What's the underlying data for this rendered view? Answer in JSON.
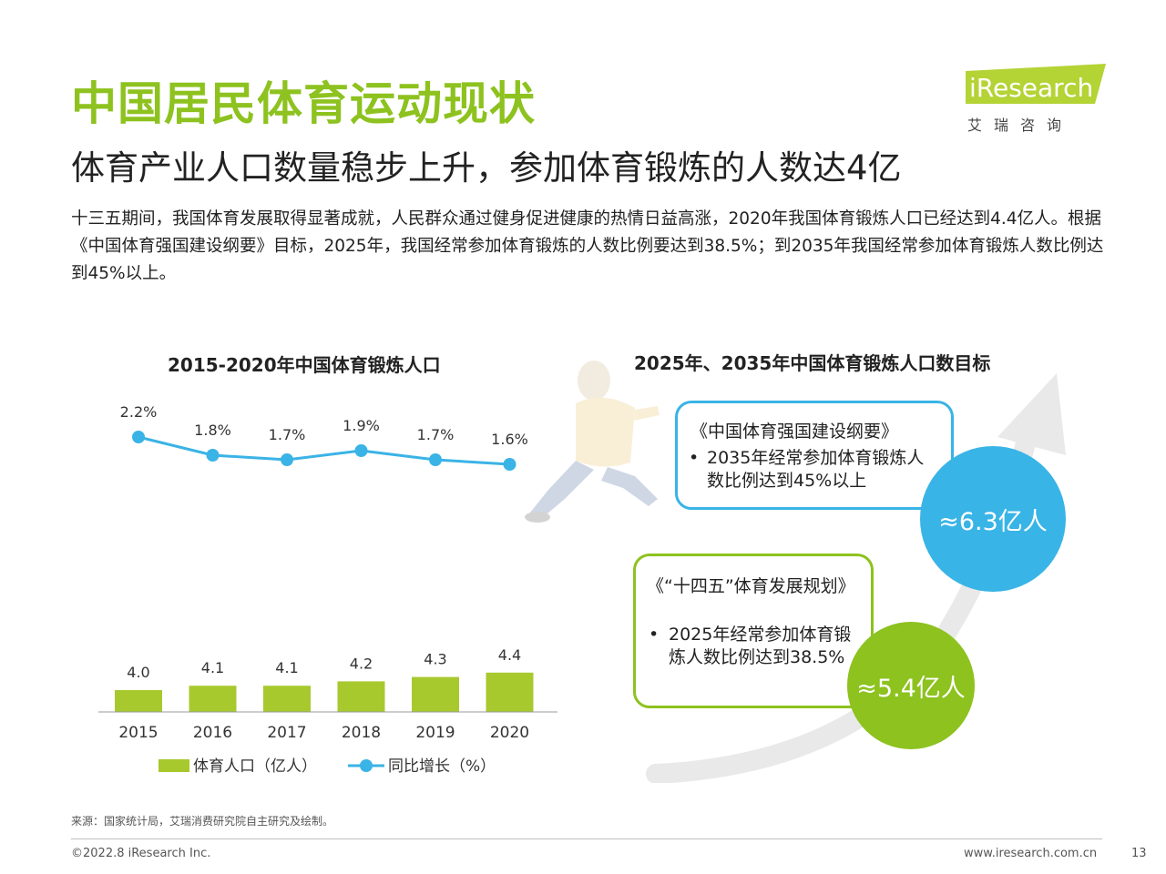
{
  "header": {
    "title": "中国居民体育运动现状",
    "subtitle": "体育产业人口数量稳步上升，参加体育锻炼的人数达4亿",
    "logo_text": "iResearch",
    "logo_cn": "艾瑞咨询"
  },
  "intro": "十三五期间，我国体育发展取得显著成就，人民群众通过健身促进健康的热情日益高涨，2020年我国体育锻炼人口已经达到4.4亿人。根据《中国体育强国建设纲要》目标，2025年，我国经常参加体育锻炼的人数比例要达到38.5%；到2035年我国经常参加体育锻炼人数比例达到45%以上。",
  "chart_data": {
    "type": "bar",
    "title": "2015-2020年中国体育锻炼人口",
    "categories": [
      "2015",
      "2016",
      "2017",
      "2018",
      "2019",
      "2020"
    ],
    "series": [
      {
        "name": "体育人口（亿人）",
        "type": "bar",
        "values": [
          4.0,
          4.1,
          4.1,
          4.2,
          4.3,
          4.4
        ],
        "labels": [
          "4.0",
          "4.1",
          "4.1",
          "4.2",
          "4.3",
          "4.4"
        ],
        "color": "#a8c92e"
      },
      {
        "name": "同比增长（%）",
        "type": "line",
        "values": [
          2.2,
          1.8,
          1.7,
          1.9,
          1.7,
          1.6
        ],
        "labels": [
          "2.2%",
          "1.8%",
          "1.7%",
          "1.9%",
          "1.7%",
          "1.6%"
        ],
        "color": "#3ab3e6"
      }
    ],
    "legend": "bottom"
  },
  "targets": {
    "title": "2025年、2035年中国体育锻炼人口数目标",
    "box_2035": {
      "heading": "《中国体育强国建设纲要》",
      "bullet": "2035年经常参加体育锻炼人数比例达到45%以上",
      "value": "≈6.3亿人",
      "color": "#39b4e6"
    },
    "box_2025": {
      "heading": "《“十四五”体育发展规划》",
      "bullet": "2025年经常参加体育锻炼人数比例达到38.5%",
      "value": "≈5.4亿人",
      "color": "#8dc21f"
    }
  },
  "footer": {
    "source": "来源：国家统计局，艾瑞消费研究院自主研究及绘制。",
    "copyright": "©2022.8 iResearch Inc.",
    "website": "www.iresearch.com.cn",
    "page": "13"
  }
}
